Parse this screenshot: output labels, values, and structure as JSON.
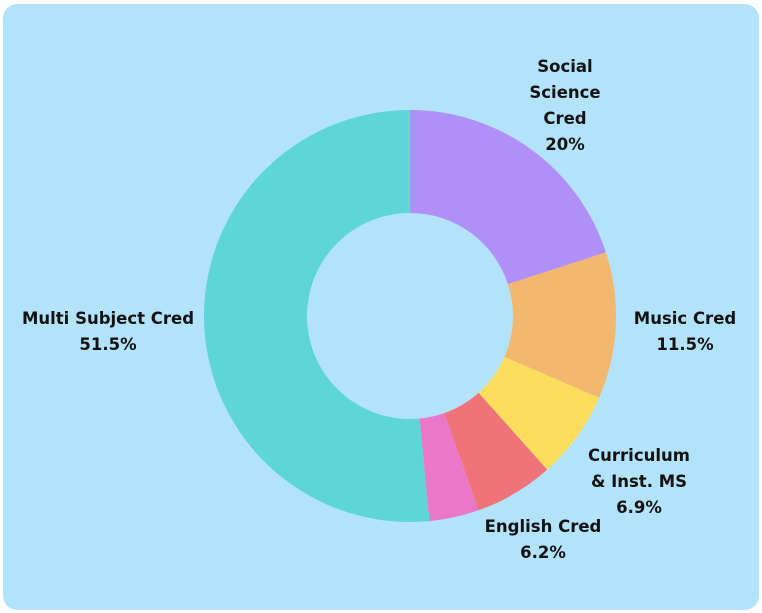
{
  "chart_data": {
    "type": "pie",
    "donut": true,
    "categories": [
      "Social Science Cred",
      "Music Cred",
      "Curriculum & Inst. MS",
      "English Cred",
      "Multi Subject Cred"
    ],
    "values": [
      20,
      11.5,
      6.9,
      6.2,
      51.5
    ],
    "value_labels": [
      "20%",
      "11.5%",
      "6.9%",
      "6.2%",
      "51.5%"
    ],
    "series_colors": [
      "#b08ff6",
      "#f3b870",
      "#fedd5c",
      "#f0737a",
      "#5dd6d5"
    ],
    "extra_slice": {
      "value": 3.9,
      "color": "#ea77c8"
    },
    "background": "#b3e3fb"
  }
}
